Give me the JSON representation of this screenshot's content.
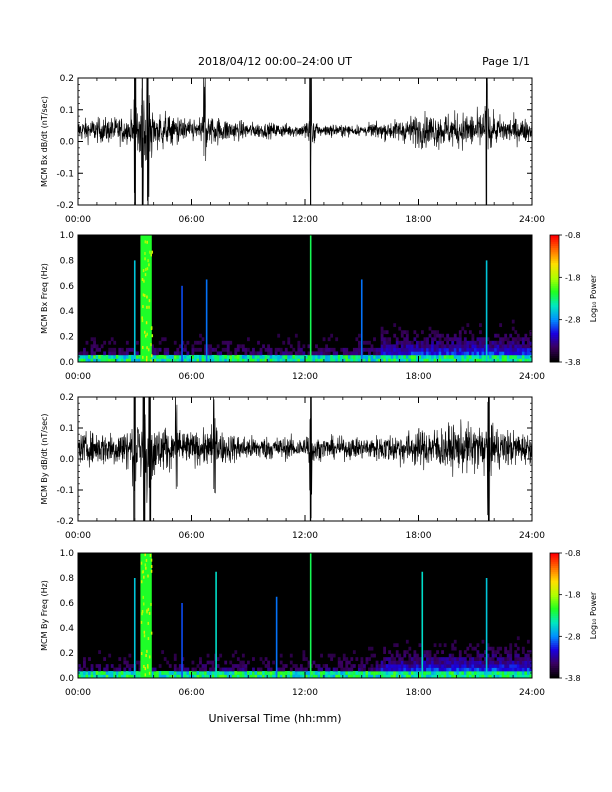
{
  "header": {
    "title": "2018/04/12  00:00–24:00 UT",
    "page": "Page 1/1"
  },
  "footer": {
    "xlabel": "Universal Time (hh:mm)"
  },
  "colorbar": {
    "label": "Log₁₀ Power",
    "ticks": [
      "-0.8",
      "-1.8",
      "-2.8",
      "-3.8"
    ],
    "range": [
      -3.8,
      -0.8
    ],
    "colors": [
      "#000000",
      "#3a0060",
      "#1a00e0",
      "#0090ff",
      "#00e8c0",
      "#20ff20",
      "#b0ff00",
      "#ffe000",
      "#ff7000",
      "#ff0000"
    ]
  },
  "x_ticks": [
    "00:00",
    "06:00",
    "12:00",
    "18:00",
    "24:00"
  ],
  "chart_data": [
    {
      "type": "line",
      "name": "bx-dbdt",
      "ylabel": "MCM Bx dB/dt (nT/sec)",
      "ylim": [
        -0.2,
        0.2
      ],
      "yticks": [
        "0.2",
        "0.1",
        "0.0",
        "-0.1",
        "-0.2"
      ],
      "x_range_hours": [
        0,
        24
      ],
      "baseline": 0.035,
      "events_hours": [
        {
          "t": 3.0,
          "amp": 0.25
        },
        {
          "t": 3.4,
          "amp": 0.22
        },
        {
          "t": 3.7,
          "amp": 0.3
        },
        {
          "t": 6.7,
          "amp": 0.12
        },
        {
          "t": 12.3,
          "amp": 0.2
        },
        {
          "t": 21.6,
          "amp": 0.18
        }
      ],
      "envelope": [
        [
          0,
          0.06
        ],
        [
          3,
          0.08
        ],
        [
          4,
          0.11
        ],
        [
          6,
          0.06
        ],
        [
          7,
          0.08
        ],
        [
          9,
          0.045
        ],
        [
          12,
          0.035
        ],
        [
          15,
          0.03
        ],
        [
          17,
          0.06
        ],
        [
          18,
          0.09
        ],
        [
          21,
          0.1
        ],
        [
          24,
          0.06
        ]
      ]
    },
    {
      "type": "heatmap",
      "name": "bx-spectrogram",
      "ylabel": "MCM Bx Freq (Hz)",
      "ylim": [
        0.0,
        1.0
      ],
      "yticks": [
        "1.0",
        "0.8",
        "0.6",
        "0.4",
        "0.2",
        "0.0"
      ],
      "x_range_hours": [
        0,
        24
      ],
      "broadband_hours": [
        [
          3.3,
          3.9
        ]
      ],
      "line_events": [
        {
          "t": 3.0,
          "level": 0.5
        },
        {
          "t": 5.5,
          "level": 0.3
        },
        {
          "t": 6.8,
          "level": 0.35
        },
        {
          "t": 12.3,
          "level": 0.7
        },
        {
          "t": 15.0,
          "level": 0.35
        },
        {
          "t": 21.6,
          "level": 0.5
        }
      ]
    },
    {
      "type": "line",
      "name": "by-dbdt",
      "ylabel": "MCM By dB/dt (nT/sec)",
      "ylim": [
        -0.2,
        0.2
      ],
      "yticks": [
        "0.2",
        "0.1",
        "0.0",
        "-0.1",
        "-0.2"
      ],
      "x_range_hours": [
        0,
        24
      ],
      "baseline": 0.035,
      "events_hours": [
        {
          "t": 3.0,
          "amp": 0.3
        },
        {
          "t": 3.5,
          "amp": 0.35
        },
        {
          "t": 3.8,
          "amp": 0.3
        },
        {
          "t": 5.2,
          "amp": 0.14
        },
        {
          "t": 7.2,
          "amp": 0.12
        },
        {
          "t": 12.3,
          "amp": 0.2
        },
        {
          "t": 21.7,
          "amp": 0.2
        }
      ],
      "envelope": [
        [
          0,
          0.08
        ],
        [
          3,
          0.12
        ],
        [
          4,
          0.14
        ],
        [
          6,
          0.09
        ],
        [
          7,
          0.1
        ],
        [
          9,
          0.07
        ],
        [
          12,
          0.06
        ],
        [
          15,
          0.06
        ],
        [
          17,
          0.09
        ],
        [
          19,
          0.12
        ],
        [
          21,
          0.14
        ],
        [
          24,
          0.08
        ]
      ]
    },
    {
      "type": "heatmap",
      "name": "by-spectrogram",
      "ylabel": "MCM By Freq (Hz)",
      "ylim": [
        0.0,
        1.0
      ],
      "yticks": [
        "1.0",
        "0.8",
        "0.6",
        "0.4",
        "0.2",
        "0.0"
      ],
      "x_range_hours": [
        0,
        24
      ],
      "broadband_hours": [
        [
          3.3,
          3.9
        ]
      ],
      "line_events": [
        {
          "t": 3.0,
          "level": 0.5
        },
        {
          "t": 5.5,
          "level": 0.3
        },
        {
          "t": 7.3,
          "level": 0.55
        },
        {
          "t": 10.5,
          "level": 0.35
        },
        {
          "t": 12.3,
          "level": 0.7
        },
        {
          "t": 18.2,
          "level": 0.55
        },
        {
          "t": 21.6,
          "level": 0.5
        }
      ]
    }
  ]
}
